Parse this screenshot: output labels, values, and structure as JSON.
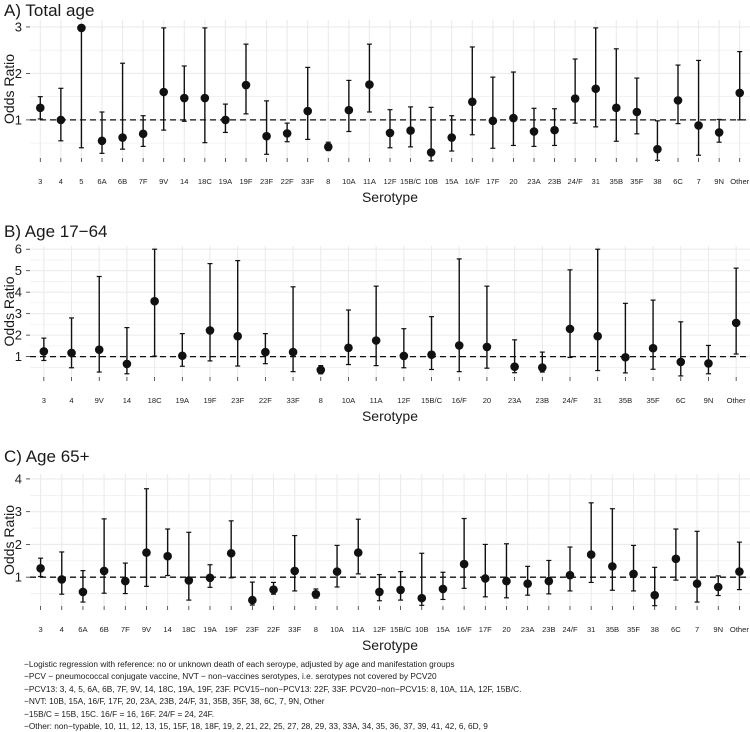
{
  "chart_data": [
    {
      "type": "errorbar",
      "title": "A) Total age",
      "xlabel": "Serotype",
      "ylabel": "Odds Ratio",
      "ylim": [
        0.18,
        3.15
      ],
      "yticks": [
        1,
        2,
        3
      ],
      "reference_line": 1,
      "categories": [
        "3",
        "4",
        "5",
        "6A",
        "6B",
        "7F",
        "9V",
        "14",
        "18C",
        "19A",
        "19F",
        "23F",
        "22F",
        "33F",
        "8",
        "10A",
        "11A",
        "12F",
        "15B/C",
        "10B",
        "15A",
        "16/F",
        "17F",
        "20",
        "23A",
        "23B",
        "24/F",
        "31",
        "35B",
        "35F",
        "38",
        "6C",
        "7",
        "9N",
        "Other"
      ],
      "estimate": [
        1.26,
        1.0,
        2.98,
        0.55,
        0.62,
        0.7,
        1.6,
        1.47,
        1.47,
        1.0,
        1.75,
        0.65,
        0.71,
        1.19,
        0.42,
        1.21,
        1.76,
        0.72,
        0.77,
        0.3,
        0.62,
        1.39,
        0.98,
        1.04,
        0.75,
        0.78,
        1.46,
        1.67,
        1.26,
        1.17,
        0.37,
        1.42,
        0.88,
        0.73,
        1.58
      ],
      "lower": [
        1.02,
        0.55,
        0.4,
        0.28,
        0.37,
        0.43,
        0.78,
        0.97,
        0.51,
        0.73,
        1.13,
        0.26,
        0.53,
        0.58,
        0.34,
        0.75,
        1.17,
        0.4,
        0.42,
        0.12,
        0.33,
        0.68,
        0.39,
        0.45,
        0.43,
        0.45,
        0.93,
        0.85,
        0.54,
        0.7,
        0.13,
        0.92,
        0.24,
        0.52,
        1.0
      ],
      "upper": [
        1.5,
        1.68,
        2.98,
        1.17,
        2.22,
        1.09,
        2.98,
        2.16,
        2.98,
        1.34,
        2.63,
        1.41,
        0.93,
        2.13,
        0.52,
        1.85,
        2.63,
        1.22,
        1.28,
        1.27,
        1.09,
        2.57,
        1.92,
        2.03,
        1.25,
        1.24,
        2.31,
        2.98,
        2.53,
        1.9,
        0.98,
        2.18,
        2.28,
        1.01,
        2.47
      ]
    },
    {
      "type": "errorbar",
      "title": "B) Age 17−64",
      "xlabel": "Serotype",
      "ylabel": "Odds Ratio",
      "ylim": [
        0.05,
        6.15
      ],
      "yticks": [
        1,
        2,
        3,
        4,
        5,
        6
      ],
      "reference_line": 1,
      "categories": [
        "3",
        "4",
        "9V",
        "14",
        "18C",
        "19A",
        "19F",
        "23F",
        "22F",
        "33F",
        "8",
        "10A",
        "11A",
        "12F",
        "15B/C",
        "16/F",
        "20",
        "23A",
        "23B",
        "24/F",
        "31",
        "35B",
        "35F",
        "6C",
        "9N",
        "Other"
      ],
      "estimate": [
        1.24,
        1.17,
        1.32,
        0.66,
        3.58,
        1.04,
        2.22,
        1.95,
        1.21,
        1.21,
        0.38,
        1.41,
        1.75,
        1.03,
        1.09,
        1.52,
        1.45,
        0.53,
        0.49,
        2.29,
        1.95,
        0.97,
        1.39,
        0.75,
        0.68,
        2.57
      ],
      "lower": [
        0.82,
        0.48,
        0.28,
        0.2,
        1.02,
        0.55,
        0.8,
        0.56,
        0.67,
        0.3,
        0.2,
        0.63,
        0.58,
        0.48,
        0.4,
        0.3,
        0.46,
        0.25,
        0.28,
        0.96,
        0.35,
        0.24,
        0.41,
        0.1,
        0.2,
        1.12
      ],
      "upper": [
        1.86,
        2.8,
        4.73,
        2.35,
        6.0,
        2.07,
        5.33,
        5.47,
        2.07,
        4.25,
        0.58,
        3.17,
        4.28,
        2.3,
        2.86,
        5.55,
        4.28,
        1.78,
        1.21,
        5.04,
        6.0,
        3.48,
        3.63,
        2.62,
        1.52,
        5.12
      ]
    },
    {
      "type": "errorbar",
      "title": "C) Age 65+",
      "xlabel": "Serotype",
      "ylabel": "Odds Ratio",
      "ylim": [
        0.12,
        4.15
      ],
      "yticks": [
        1,
        2,
        3,
        4
      ],
      "reference_line": 1,
      "categories": [
        "3",
        "4",
        "6A",
        "6B",
        "7F",
        "9V",
        "14",
        "18C",
        "19A",
        "19F",
        "23F",
        "22F",
        "33F",
        "8",
        "10A",
        "11A",
        "12F",
        "15B/C",
        "10B",
        "15A",
        "16/F",
        "17F",
        "20",
        "23A",
        "23B",
        "24/F",
        "31",
        "35B",
        "35F",
        "38",
        "6C",
        "7",
        "9N",
        "Other"
      ],
      "estimate": [
        1.27,
        0.93,
        0.55,
        1.19,
        0.88,
        1.75,
        1.64,
        0.9,
        0.98,
        1.73,
        0.3,
        0.62,
        1.19,
        0.48,
        1.17,
        1.75,
        0.55,
        0.61,
        0.36,
        0.64,
        1.4,
        0.96,
        0.88,
        0.8,
        0.88,
        1.06,
        1.69,
        1.33,
        1.1,
        0.45,
        1.56,
        0.8,
        0.7,
        1.17
      ],
      "lower": [
        1.02,
        0.48,
        0.24,
        0.51,
        0.5,
        0.72,
        1.05,
        0.3,
        0.69,
        0.98,
        0.15,
        0.48,
        0.58,
        0.36,
        0.7,
        1.1,
        0.28,
        0.3,
        0.14,
        0.32,
        0.66,
        0.4,
        0.37,
        0.45,
        0.49,
        0.58,
        0.84,
        0.6,
        0.58,
        0.13,
        0.91,
        0.24,
        0.44,
        0.62
      ],
      "upper": [
        1.58,
        1.77,
        1.2,
        2.78,
        1.43,
        3.7,
        2.47,
        2.37,
        1.38,
        2.72,
        0.85,
        0.84,
        2.27,
        0.64,
        1.97,
        2.77,
        1.08,
        1.17,
        1.73,
        1.15,
        2.79,
        2.0,
        2.02,
        1.33,
        1.51,
        1.92,
        3.27,
        3.09,
        1.97,
        1.3,
        2.47,
        2.4,
        1.04,
        2.07
      ]
    }
  ],
  "notes": [
    "−Logistic regression with reference: no or unknown death of each seroype, adjusted by age and manifestation groups",
    "−PCV − pneumococcal conjugate vaccine, NVT − non−vaccines serotypes, i.e. serotypes not covered by PCV20",
    "−PCV13: 3, 4, 5, 6A, 6B, 7F, 9V, 14, 18C, 19A, 19F, 23F. PCV15−non−PCV13: 22F, 33F. PCV20−non−PCV15: 8, 10A, 11A, 12F, 15B/C.",
    "−NVT: 10B, 15A, 16/F, 17F, 20, 23A, 23B, 24/F, 31, 35B, 35F, 38, 6C, 7, 9N, Other",
    "−15B/C = 15B, 15C. 16/F = 16, 16F. 24/F = 24, 24F.",
    "−Other: non−typable, 10, 11, 12, 13, 15, 15F, 18, 18F, 19, 2, 21, 22, 25, 27, 28, 29, 33, 33A, 34, 35, 36, 37, 39, 41, 42, 6, 6D, 9"
  ]
}
